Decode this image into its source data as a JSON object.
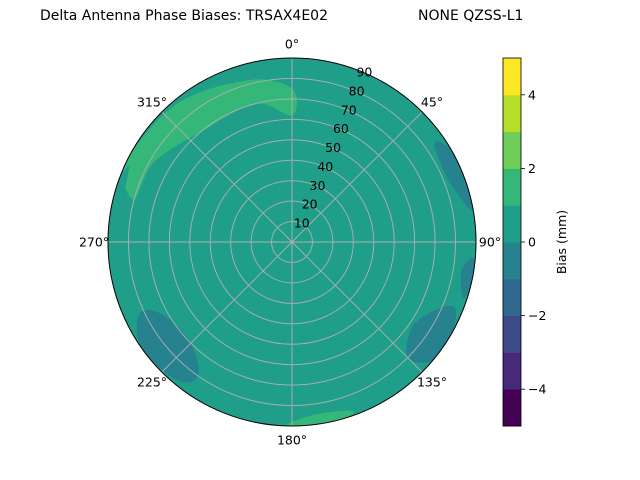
{
  "title_left": "Delta Antenna Phase Biases: TRSAX4E02",
  "title_right": "NONE QZSS-L1",
  "chart_data": {
    "type": "contour-polar",
    "title": "Delta Antenna Phase Biases: TRSAX4E02       NONE QZSS-L1",
    "angular_ticks": [
      "0°",
      "45°",
      "90°",
      "135°",
      "180°",
      "225°",
      "270°",
      "315°"
    ],
    "radial_ticks": [
      10,
      20,
      30,
      40,
      50,
      60,
      70,
      80,
      90
    ],
    "radial_label_angle_deg": 22.5,
    "grid": true,
    "colorbar": {
      "label": "Bias (mm)",
      "ticks": [
        -4,
        -2,
        0,
        2,
        4
      ],
      "range": [
        -5,
        5
      ],
      "levels": [
        -5,
        -4.5,
        -4,
        -3.5,
        -3,
        -2.5,
        -2,
        -1.5,
        -1,
        -0.5,
        0,
        0.5,
        1,
        1.5,
        2,
        2.5,
        3,
        3.5,
        4,
        4.5,
        5
      ],
      "colors": [
        "#440154",
        "#482878",
        "#3e4989",
        "#31688e",
        "#26828e",
        "#1f9e89",
        "#35b779",
        "#6ece58",
        "#b5de2b",
        "#fde725"
      ]
    },
    "background_level": [
      0,
      0.5
    ],
    "regions": [
      {
        "name": "zenith-area-elev-0-50",
        "level": [
          0.5,
          1.0
        ],
        "polygon_az_r": [
          [
            90,
            10
          ],
          [
            130,
            35
          ],
          [
            175,
            45
          ],
          [
            230,
            40
          ],
          [
            250,
            30
          ],
          [
            300,
            15
          ],
          [
            0,
            10
          ],
          [
            60,
            15
          ]
        ]
      },
      {
        "name": "southwest-band",
        "level": [
          0.5,
          1.0
        ],
        "polygon_az_r": [
          [
            180,
            45
          ],
          [
            200,
            50
          ],
          [
            230,
            60
          ],
          [
            250,
            55
          ],
          [
            260,
            45
          ],
          [
            230,
            40
          ]
        ]
      },
      {
        "name": "northwest-high",
        "level": [
          1.0,
          1.5
        ],
        "polygon_az_r": [
          [
            285,
            80
          ],
          [
            300,
            78
          ],
          [
            320,
            70
          ],
          [
            345,
            70
          ],
          [
            0,
            62
          ],
          [
            0,
            75
          ],
          [
            345,
            82
          ],
          [
            320,
            88
          ],
          [
            295,
            90
          ]
        ]
      },
      {
        "name": "northwest-peak",
        "level": [
          1.5,
          2.0
        ],
        "polygon_az_r": [
          [
            290,
            82
          ],
          [
            305,
            80
          ],
          [
            325,
            72
          ],
          [
            340,
            74
          ],
          [
            330,
            82
          ],
          [
            310,
            86
          ],
          [
            293,
            88
          ]
        ]
      },
      {
        "name": "west-lobe",
        "level": [
          0.5,
          1.0
        ],
        "polygon_az_r": [
          [
            255,
            75
          ],
          [
            270,
            82
          ],
          [
            285,
            85
          ],
          [
            295,
            88
          ],
          [
            285,
            90
          ],
          [
            265,
            90
          ],
          [
            255,
            85
          ]
        ]
      },
      {
        "name": "east-low",
        "level": [
          -0.5,
          0.0
        ],
        "polygon_az_r": [
          [
            55,
            85
          ],
          [
            65,
            82
          ],
          [
            75,
            85
          ],
          [
            80,
            90
          ],
          [
            70,
            90
          ],
          [
            60,
            90
          ]
        ]
      },
      {
        "name": "east-low-deep",
        "level": [
          -1.0,
          -0.5
        ],
        "polygon_az_r": [
          [
            60,
            87
          ],
          [
            68,
            84
          ],
          [
            76,
            88
          ],
          [
            72,
            90
          ],
          [
            64,
            90
          ]
        ]
      },
      {
        "name": "east-edge-low",
        "level": [
          -0.5,
          0.0
        ],
        "polygon_az_r": [
          [
            95,
            88
          ],
          [
            100,
            84
          ],
          [
            108,
            88
          ],
          [
            104,
            90
          ],
          [
            97,
            90
          ]
        ]
      },
      {
        "name": "southeast-low",
        "level": [
          -0.5,
          0.0
        ],
        "polygon_az_r": [
          [
            115,
            78
          ],
          [
            125,
            72
          ],
          [
            135,
            80
          ],
          [
            130,
            90
          ],
          [
            120,
            90
          ],
          [
            112,
            86
          ]
        ]
      },
      {
        "name": "southwest-low",
        "level": [
          -0.5,
          0.0
        ],
        "polygon_az_r": [
          [
            215,
            80
          ],
          [
            225,
            70
          ],
          [
            240,
            72
          ],
          [
            245,
            82
          ],
          [
            235,
            90
          ],
          [
            220,
            88
          ]
        ]
      },
      {
        "name": "southwest-low-deep",
        "level": [
          -1.0,
          -0.5
        ],
        "polygon_az_r": [
          [
            222,
            80
          ],
          [
            228,
            74
          ],
          [
            238,
            76
          ],
          [
            240,
            84
          ],
          [
            230,
            88
          ]
        ]
      },
      {
        "name": "south-edge-high",
        "level": [
          1.0,
          1.5
        ],
        "polygon_az_r": [
          [
            160,
            88
          ],
          [
            170,
            85
          ],
          [
            180,
            88
          ],
          [
            180,
            90
          ],
          [
            165,
            90
          ]
        ]
      },
      {
        "name": "south-edge-peak",
        "level": [
          1.5,
          2.0
        ],
        "polygon_az_r": [
          [
            165,
            89
          ],
          [
            172,
            87
          ],
          [
            178,
            89
          ],
          [
            175,
            90
          ]
        ]
      },
      {
        "name": "north-east-mid",
        "level": [
          0.5,
          1.0
        ],
        "polygon_az_r": [
          [
            20,
            60
          ],
          [
            35,
            55
          ],
          [
            50,
            65
          ],
          [
            40,
            75
          ],
          [
            25,
            72
          ]
        ]
      }
    ]
  }
}
